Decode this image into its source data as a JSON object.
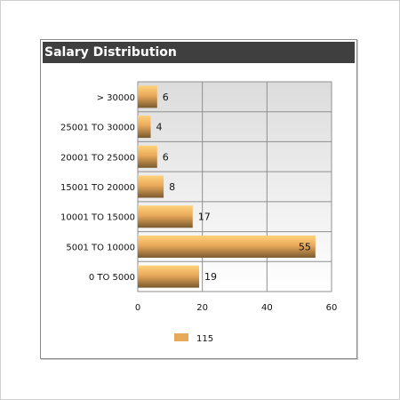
{
  "panel": {
    "title": "Salary Distribution"
  },
  "colors": {
    "bar_light": "#ffd27a",
    "bar_mid": "#e8a95a",
    "bar_dark": "#7a5a2e",
    "grid": "#8f8f8f",
    "plot_top": "#dcdcdc",
    "plot_bottom": "#ffffff"
  },
  "chart_data": {
    "type": "bar",
    "orientation": "horizontal",
    "title": "Salary Distribution",
    "categories": [
      "> 30000",
      "25001 TO 30000",
      "20001 TO 25000",
      "15001 TO 20000",
      "10001 TO 15000",
      "5001 TO 10000",
      "0 TO 5000"
    ],
    "values": [
      6,
      4,
      6,
      8,
      17,
      55,
      19
    ],
    "xlim": [
      0,
      60
    ],
    "xticks": [
      0,
      20,
      40,
      60
    ],
    "grid": true,
    "legend": {
      "position": "bottom",
      "entries": [
        {
          "name": "115"
        }
      ]
    }
  }
}
